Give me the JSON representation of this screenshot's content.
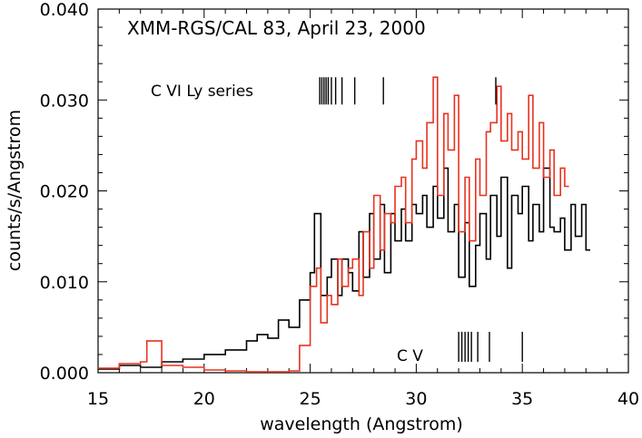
{
  "chart_data": {
    "type": "line",
    "title": "XMM-RGS/CAL 83, April 23, 2000",
    "xlabel": "wavelength (Angstrom)",
    "ylabel": "counts/s/Angstrom",
    "xlim": [
      15,
      40
    ],
    "ylim": [
      0,
      0.04
    ],
    "x_ticks": [
      15,
      20,
      25,
      30,
      35,
      40
    ],
    "x_tick_labels": [
      "15",
      "20",
      "25",
      "30",
      "35",
      "40"
    ],
    "y_ticks": [
      0,
      0.01,
      0.02,
      0.03,
      0.04
    ],
    "y_tick_labels": [
      "0.000",
      "0.010",
      "0.020",
      "0.030",
      "0.040"
    ],
    "line_style": "histogram-step",
    "series": [
      {
        "color": "#000000",
        "x": [
          15.0,
          16.0,
          17.0,
          18.0,
          19.0,
          20.0,
          21.0,
          22.0,
          22.5,
          23.0,
          23.5,
          24.0,
          24.5,
          25.0,
          25.2,
          25.5,
          25.8,
          26.0,
          26.3,
          26.5,
          26.8,
          27.0,
          27.3,
          27.5,
          27.8,
          28.0,
          28.3,
          28.5,
          28.8,
          29.0,
          29.3,
          29.5,
          29.8,
          30.0,
          30.3,
          30.5,
          30.8,
          31.0,
          31.3,
          31.5,
          31.8,
          32.0,
          32.3,
          32.5,
          32.8,
          33.0,
          33.3,
          33.5,
          33.8,
          34.0,
          34.3,
          34.5,
          34.8,
          35.0,
          35.3,
          35.5,
          35.8,
          36.0,
          36.3,
          36.5,
          36.8,
          37.0,
          37.3,
          37.5,
          37.8,
          38.0
        ],
        "y": [
          0.0004,
          0.0008,
          0.0006,
          0.0012,
          0.0015,
          0.002,
          0.0025,
          0.0035,
          0.0042,
          0.0038,
          0.0058,
          0.005,
          0.008,
          0.011,
          0.0175,
          0.0085,
          0.0105,
          0.0125,
          0.0085,
          0.0125,
          0.011,
          0.009,
          0.0155,
          0.0105,
          0.0175,
          0.0125,
          0.0185,
          0.011,
          0.0175,
          0.0145,
          0.018,
          0.0145,
          0.0185,
          0.0175,
          0.0195,
          0.016,
          0.0205,
          0.017,
          0.0225,
          0.0155,
          0.0185,
          0.0105,
          0.0165,
          0.0095,
          0.014,
          0.0175,
          0.0125,
          0.0195,
          0.015,
          0.0215,
          0.0115,
          0.0195,
          0.0175,
          0.0205,
          0.0145,
          0.0185,
          0.0155,
          0.0225,
          0.016,
          0.0155,
          0.017,
          0.0135,
          0.0185,
          0.015,
          0.0185,
          0.0135
        ]
      },
      {
        "color": "#e8321e",
        "x": [
          15.0,
          16.0,
          17.0,
          17.3,
          18.0,
          19.0,
          20.0,
          21.0,
          22.0,
          23.0,
          24.0,
          24.5,
          25.0,
          25.3,
          25.5,
          25.8,
          26.0,
          26.3,
          26.5,
          26.8,
          27.0,
          27.3,
          27.5,
          27.8,
          28.0,
          28.3,
          28.5,
          28.8,
          29.0,
          29.3,
          29.5,
          29.8,
          30.0,
          30.3,
          30.5,
          30.8,
          31.0,
          31.3,
          31.5,
          31.8,
          32.0,
          32.3,
          32.5,
          32.8,
          33.0,
          33.3,
          33.5,
          33.8,
          34.0,
          34.3,
          34.5,
          34.8,
          35.0,
          35.3,
          35.5,
          35.8,
          36.0,
          36.3,
          36.5,
          36.8,
          37.0
        ],
        "y": [
          0.0005,
          0.001,
          0.0012,
          0.0035,
          0.0008,
          0.0006,
          0.0003,
          0.0002,
          0.0001,
          0.0001,
          0.0002,
          0.003,
          0.0095,
          0.0115,
          0.0055,
          0.0085,
          0.0075,
          0.0125,
          0.0095,
          0.0115,
          0.0125,
          0.0085,
          0.0155,
          0.0115,
          0.0195,
          0.0135,
          0.0175,
          0.0165,
          0.0205,
          0.0215,
          0.0165,
          0.0235,
          0.0255,
          0.0225,
          0.0275,
          0.0325,
          0.0195,
          0.0285,
          0.0245,
          0.0305,
          0.0155,
          0.0215,
          0.0145,
          0.0235,
          0.0195,
          0.0265,
          0.0275,
          0.0315,
          0.0255,
          0.0285,
          0.0245,
          0.0265,
          0.0235,
          0.0305,
          0.0225,
          0.0275,
          0.0215,
          0.0245,
          0.0195,
          0.0225,
          0.0205
        ]
      }
    ],
    "annotations": [
      {
        "text": "C VI Ly series",
        "ticks_at": [
          25.45,
          25.55,
          25.65,
          25.75,
          25.85,
          26.0,
          26.2,
          26.5,
          27.1,
          28.45,
          33.75
        ],
        "tick_y": [
          0.0295,
          0.0325
        ]
      },
      {
        "text": "C V",
        "ticks_at": [
          32.0,
          32.15,
          32.3,
          32.45,
          32.6,
          32.9,
          33.45,
          35.0
        ],
        "tick_y": [
          0.0012,
          0.0045
        ]
      }
    ]
  }
}
